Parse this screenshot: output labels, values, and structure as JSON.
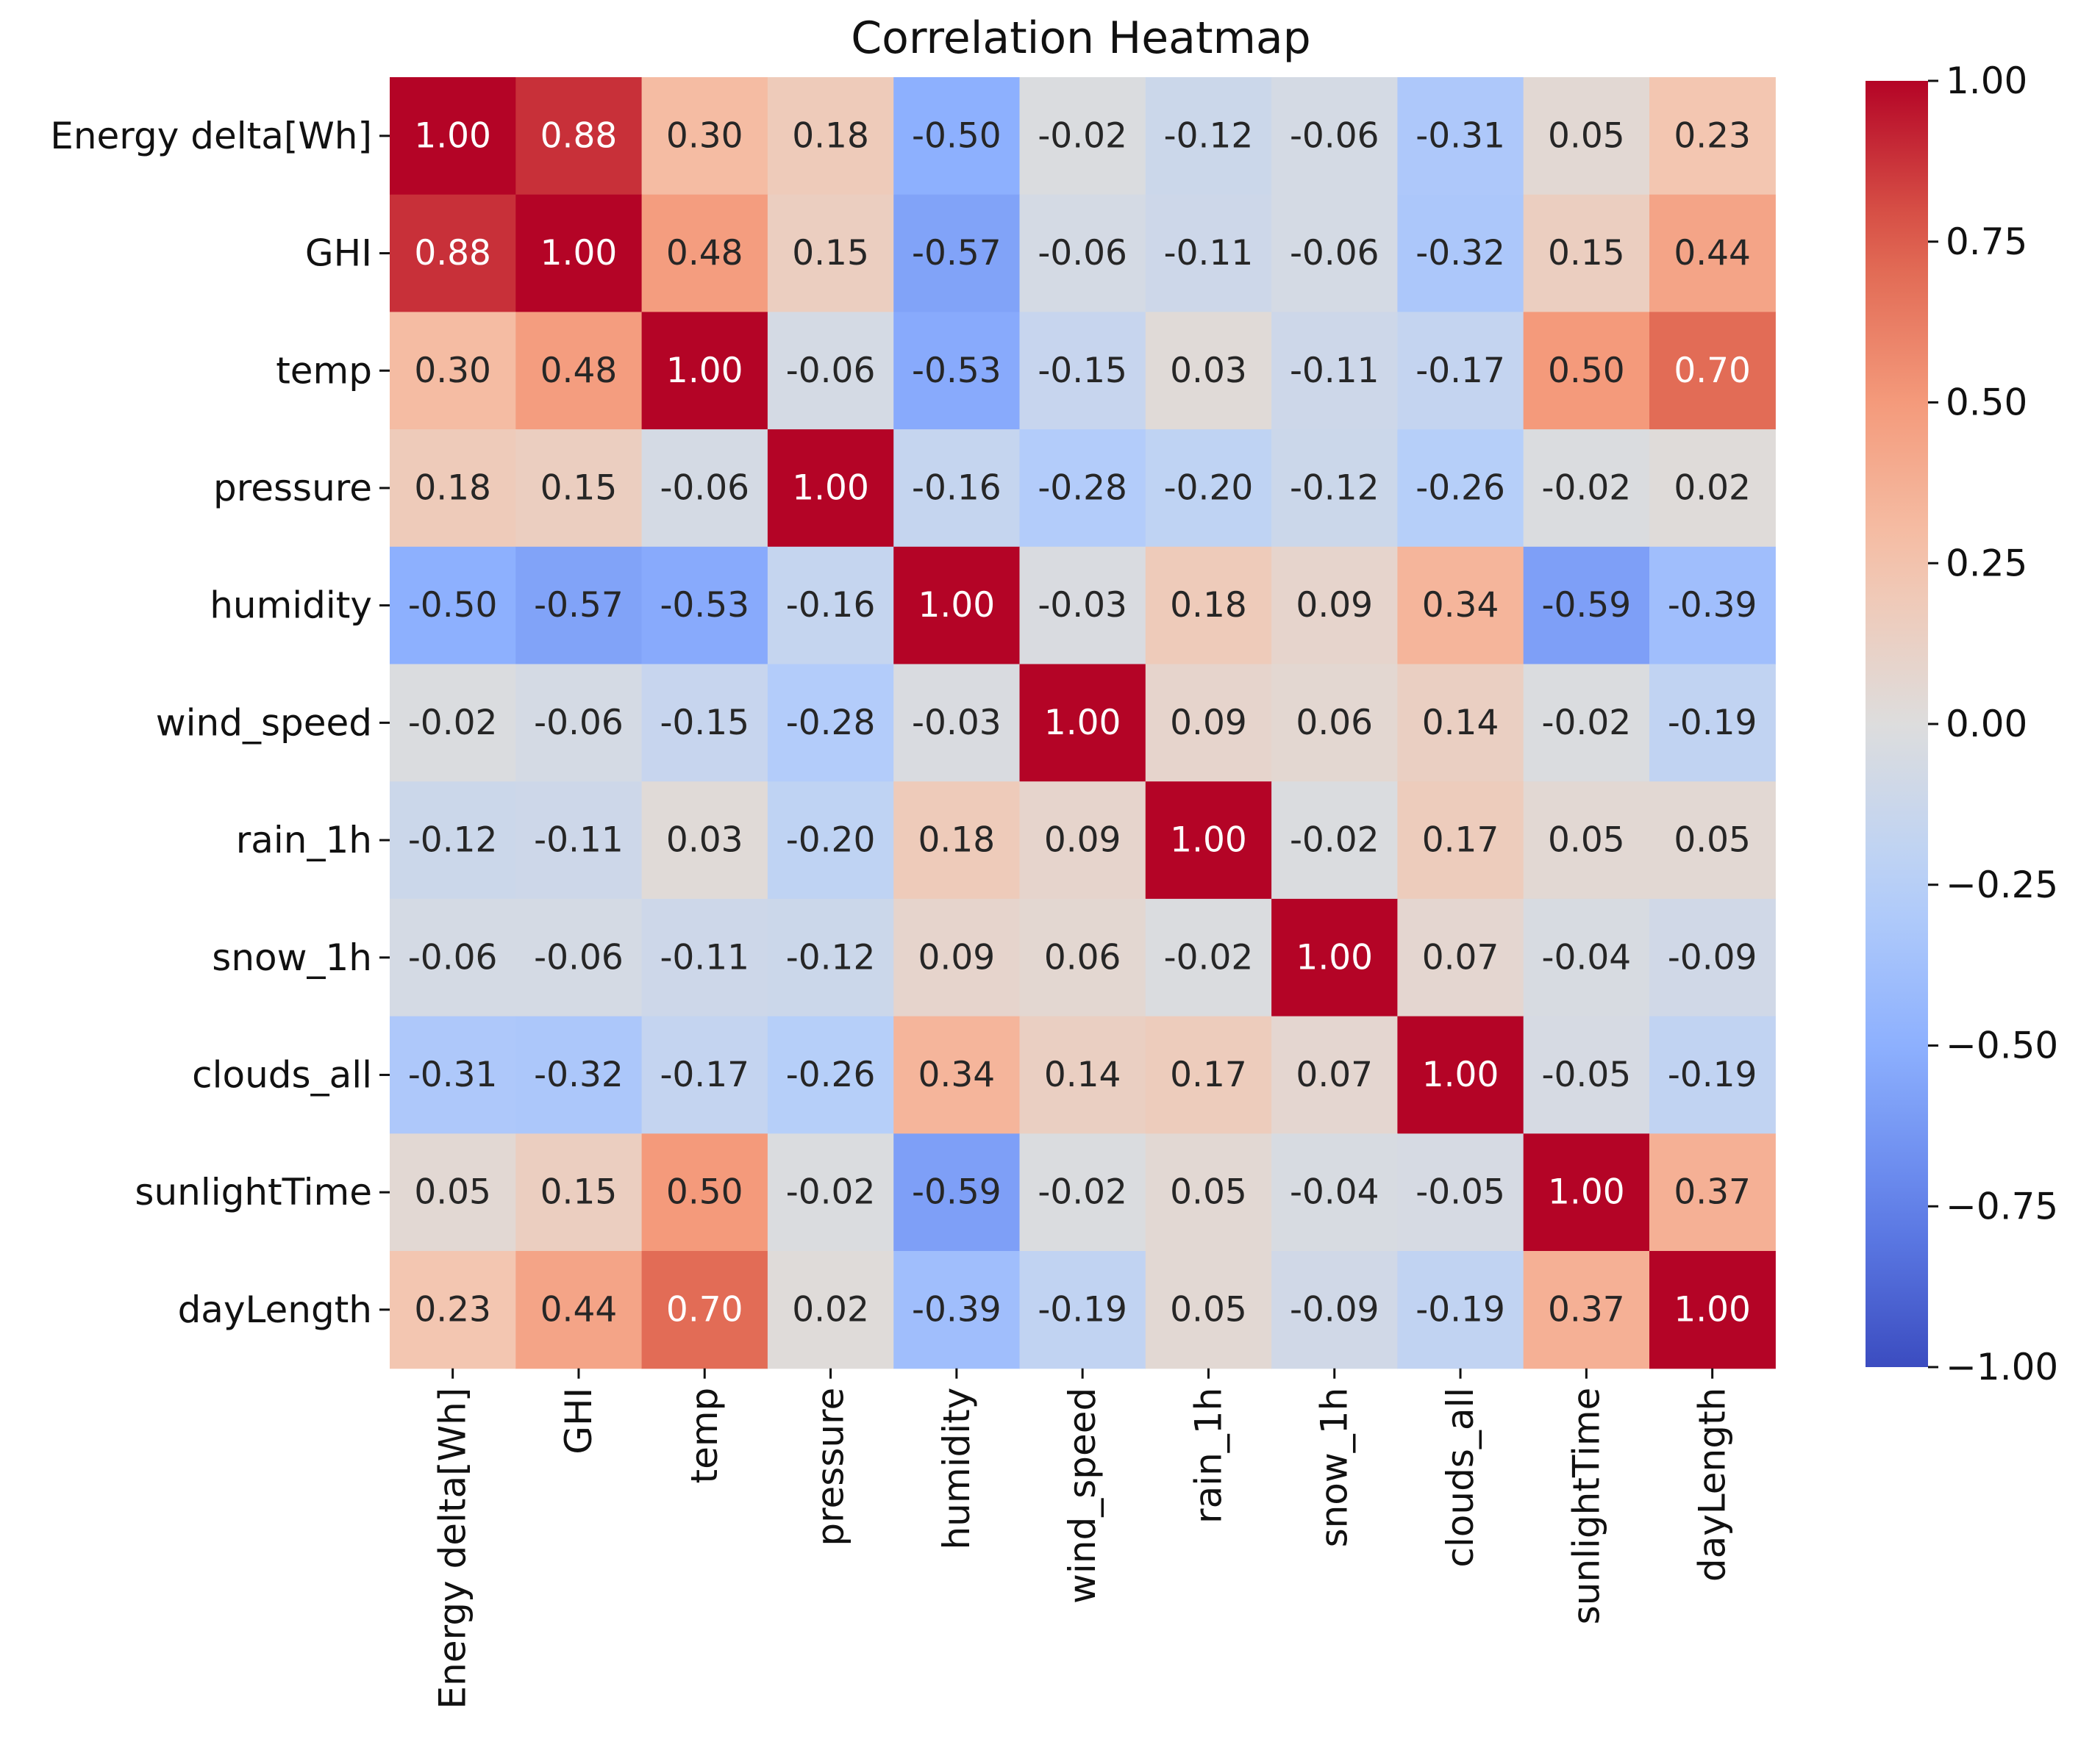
{
  "chart_data": {
    "type": "heatmap",
    "title": "Correlation Heatmap",
    "xlabel": "",
    "ylabel": "",
    "variables": [
      "Energy delta[Wh]",
      "GHI",
      "temp",
      "pressure",
      "humidity",
      "wind_speed",
      "rain_1h",
      "snow_1h",
      "clouds_all",
      "sunlightTime",
      "dayLength"
    ],
    "matrix": [
      [
        1.0,
        0.88,
        0.3,
        0.18,
        -0.5,
        -0.02,
        -0.12,
        -0.06,
        -0.31,
        0.05,
        0.23
      ],
      [
        0.88,
        1.0,
        0.48,
        0.15,
        -0.57,
        -0.06,
        -0.11,
        -0.06,
        -0.32,
        0.15,
        0.44
      ],
      [
        0.3,
        0.48,
        1.0,
        -0.06,
        -0.53,
        -0.15,
        0.03,
        -0.11,
        -0.17,
        0.5,
        0.7
      ],
      [
        0.18,
        0.15,
        -0.06,
        1.0,
        -0.16,
        -0.28,
        -0.2,
        -0.12,
        -0.26,
        -0.02,
        0.02
      ],
      [
        -0.5,
        -0.57,
        -0.53,
        -0.16,
        1.0,
        -0.03,
        0.18,
        0.09,
        0.34,
        -0.59,
        -0.39
      ],
      [
        -0.02,
        -0.06,
        -0.15,
        -0.28,
        -0.03,
        1.0,
        0.09,
        0.06,
        0.14,
        -0.02,
        -0.19
      ],
      [
        -0.12,
        -0.11,
        0.03,
        -0.2,
        0.18,
        0.09,
        1.0,
        -0.02,
        0.17,
        0.05,
        0.05
      ],
      [
        -0.06,
        -0.06,
        -0.11,
        -0.12,
        0.09,
        0.06,
        -0.02,
        1.0,
        0.07,
        -0.04,
        -0.09
      ],
      [
        -0.31,
        -0.32,
        -0.17,
        -0.26,
        0.34,
        0.14,
        0.17,
        0.07,
        1.0,
        -0.05,
        -0.19
      ],
      [
        0.05,
        0.15,
        0.5,
        -0.02,
        -0.59,
        -0.02,
        0.05,
        -0.04,
        -0.05,
        1.0,
        0.37
      ],
      [
        0.23,
        0.44,
        0.7,
        0.02,
        -0.39,
        -0.19,
        0.05,
        -0.09,
        -0.19,
        0.37,
        1.0
      ]
    ],
    "colorbar": {
      "colormap": "coolwarm",
      "range": [
        -1.0,
        1.0
      ],
      "ticks": [
        1.0,
        0.75,
        0.5,
        0.25,
        0.0,
        -0.25,
        -0.5,
        -0.75,
        -1.0
      ],
      "tick_labels": [
        "1.00",
        "0.75",
        "0.50",
        "0.25",
        "0.00",
        "−0.25",
        "−0.50",
        "−0.75",
        "−1.00"
      ]
    },
    "annotation_format": "0.00",
    "legend_position": "right"
  }
}
